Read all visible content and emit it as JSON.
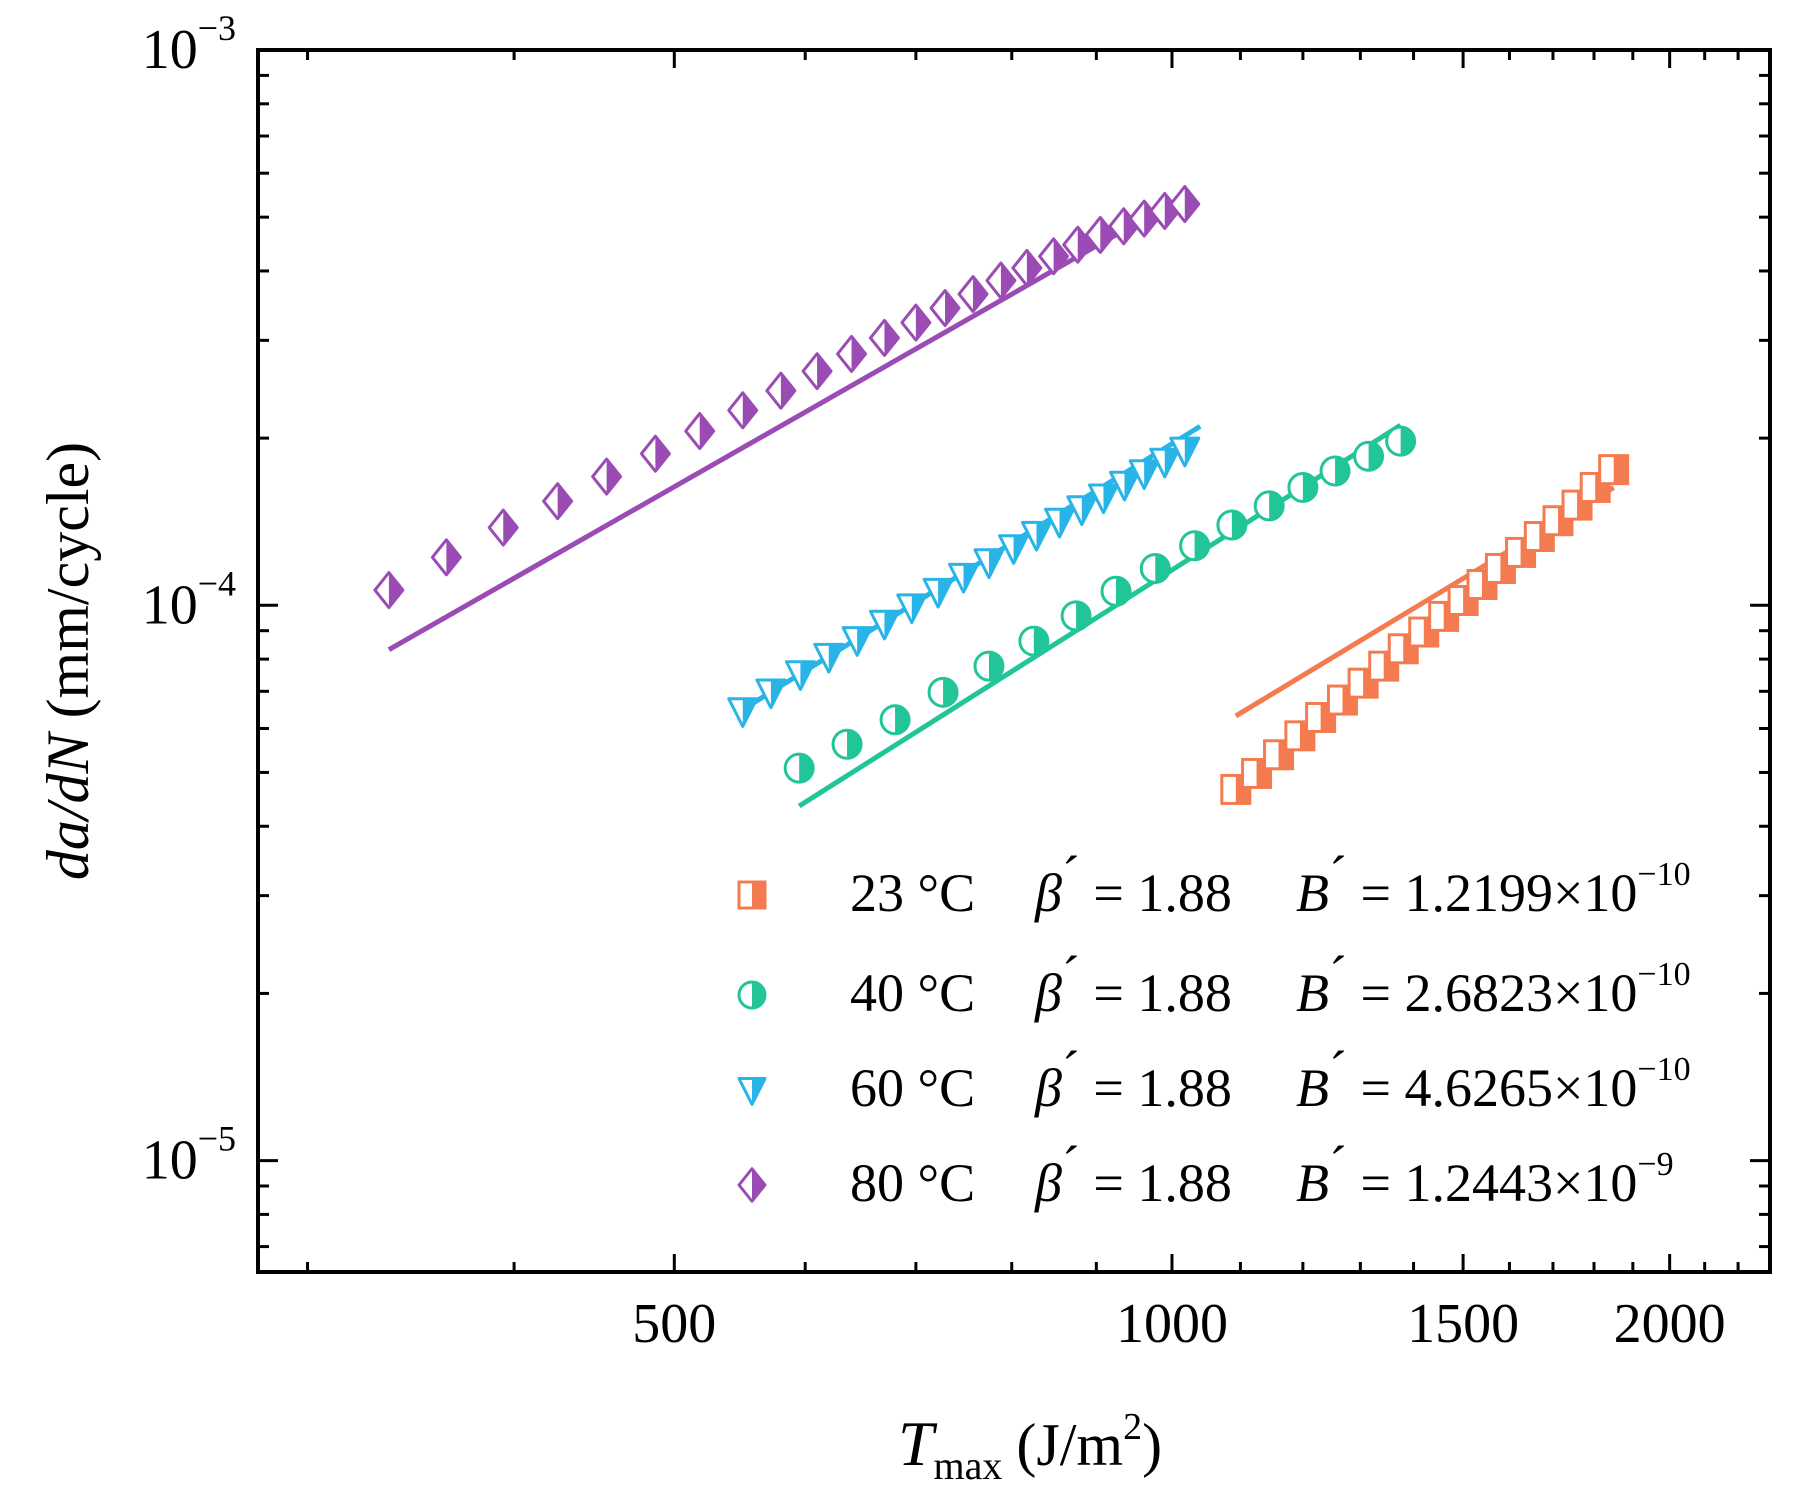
{
  "chart_data": {
    "type": "scatter",
    "x_scale": "log",
    "y_scale": "log",
    "xlim": [
      280,
      2300
    ],
    "ylim": [
      6.3e-06,
      0.001
    ],
    "grid": false,
    "legend_position": "bottom-right",
    "xlabel_main": "T",
    "xlabel_sub": "max",
    "xlabel_units": "(J/m",
    "xlabel_sup": "2",
    "xlabel_close": ")",
    "ylabel_main": "da/dN",
    "ylabel_units": "(mm/cycle)",
    "x_ticks": [
      {
        "value": 500,
        "label": "500"
      },
      {
        "value": 1000,
        "label": "1000"
      },
      {
        "value": 1500,
        "label": "1500"
      },
      {
        "value": 2000,
        "label": "2000"
      }
    ],
    "y_ticks": [
      {
        "value": 1e-05,
        "base": "10",
        "exp": "−5"
      },
      {
        "value": 0.0001,
        "base": "10",
        "exp": "−4"
      },
      {
        "value": 0.001,
        "base": "10",
        "exp": "−3"
      }
    ],
    "legend_symbols": {
      "beta": "β",
      "prime": "´",
      "eq": " = ",
      "B": "B"
    },
    "series": [
      {
        "name": "23 °C",
        "marker": "square",
        "color": "#f47b4f",
        "beta": "1.88",
        "B_mantissa": "1.2199×10",
        "B_exp": "−10",
        "x": [
          1093,
          1125,
          1160,
          1195,
          1230,
          1268,
          1305,
          1343,
          1380,
          1420,
          1460,
          1500,
          1540,
          1580,
          1625,
          1668,
          1712,
          1758,
          1803,
          1850
        ],
        "y": [
          4.66e-05,
          4.98e-05,
          5.38e-05,
          5.82e-05,
          6.28e-05,
          6.75e-05,
          7.24e-05,
          7.77e-05,
          8.35e-05,
          8.95e-05,
          9.55e-05,
          0.000102,
          0.000109,
          0.0001165,
          0.0001245,
          0.000133,
          0.000142,
          0.0001515,
          0.000163,
          0.0001755
        ],
        "fit_x": [
          1093,
          1850
        ],
        "fit_y": [
          6.32e-05,
          0.000163
        ]
      },
      {
        "name": "40 °C",
        "marker": "circle",
        "color": "#22c597",
        "beta": "1.88",
        "B_mantissa": "2.6823×10",
        "B_exp": "−10",
        "x": [
          595,
          636,
          680,
          727,
          775,
          825,
          875,
          925,
          977,
          1032,
          1087,
          1145,
          1200,
          1255,
          1315,
          1375
        ],
        "y": [
          5.09e-05,
          5.62e-05,
          6.22e-05,
          6.97e-05,
          7.77e-05,
          8.62e-05,
          9.57e-05,
          0.000106,
          0.0001165,
          0.000128,
          0.0001395,
          0.000151,
          0.000163,
          0.0001745,
          0.0001855,
          0.0001975
        ],
        "fit_x": [
          595,
          1375
        ],
        "fit_y": [
          4.35e-05,
          0.000211
        ]
      },
      {
        "name": "60 °C",
        "marker": "triangle-down",
        "color": "#29b4e8",
        "beta": "1.88",
        "B_mantissa": "4.6265×10",
        "B_exp": "−10",
        "x": [
          550,
          572,
          596,
          620,
          645,
          670,
          696,
          722,
          748,
          775,
          802,
          828,
          855,
          882,
          909,
          936,
          962,
          990,
          1018
        ],
        "y": [
          6.45e-05,
          6.97e-05,
          7.52e-05,
          8.08e-05,
          8.66e-05,
          9.27e-05,
          9.92e-05,
          0.0001058,
          0.0001126,
          0.0001196,
          0.0001268,
          0.000134,
          0.0001415,
          0.000149,
          0.0001565,
          0.000165,
          0.000173,
          0.0001815,
          0.00019
        ],
        "fit_x": [
          550,
          1040
        ],
        "fit_y": [
          6.49e-05,
          0.00021
        ]
      },
      {
        "name": "80 °C",
        "marker": "diamond",
        "color": "#9a4cb4",
        "beta": "1.88",
        "B_mantissa": "1.2443×10",
        "B_exp": "−9",
        "x": [
          336,
          364,
          394,
          425,
          455,
          487,
          518,
          550,
          580,
          610,
          640,
          670,
          700,
          729,
          758,
          788,
          817,
          848,
          877,
          905,
          935,
          962,
          990,
          1018
        ],
        "y": [
          0.0001065,
          0.000122,
          0.000138,
          0.000154,
          0.0001705,
          0.0001875,
          0.000206,
          0.0002245,
          0.0002435,
          0.000264,
          0.0002835,
          0.000303,
          0.000323,
          0.000343,
          0.0003635,
          0.0003845,
          0.000405,
          0.000425,
          0.000446,
          0.0004645,
          0.0004815,
          0.000497,
          0.000513,
          0.000528
        ],
        "fit_x": [
          336,
          1018
        ],
        "fit_y": [
          8.32e-05,
          0.000547
        ]
      }
    ]
  }
}
